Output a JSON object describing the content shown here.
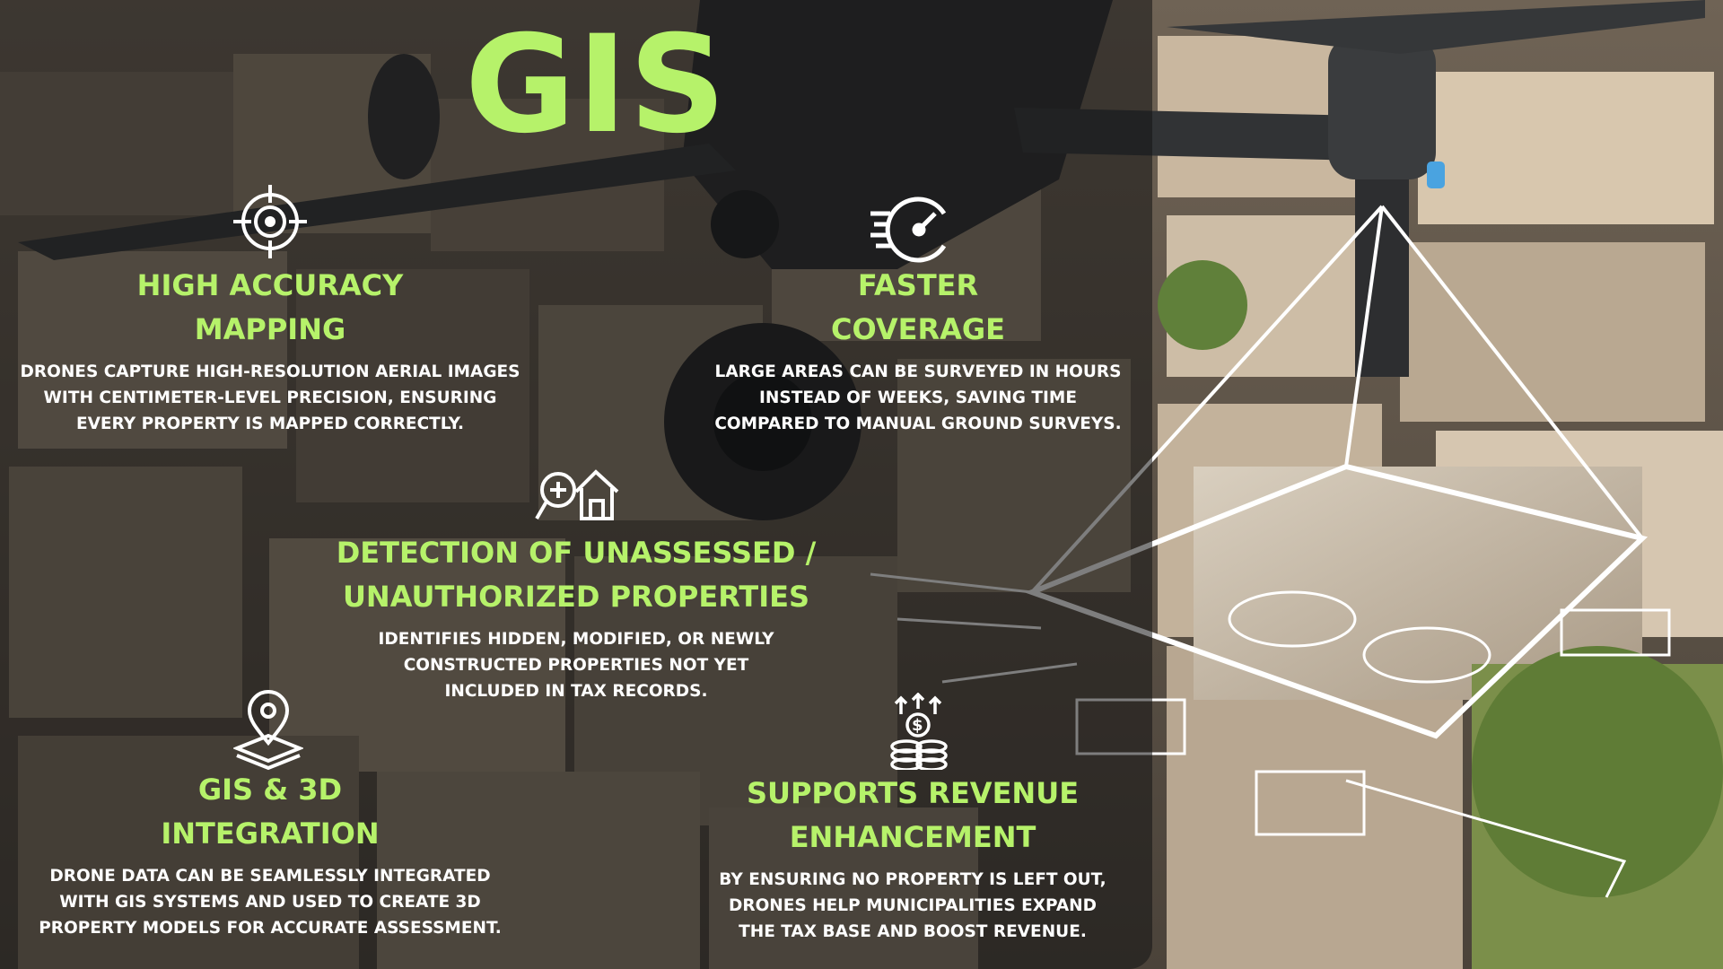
{
  "title": "GIS",
  "colors": {
    "accent": "#b6f26a",
    "text": "#ffffff",
    "overlay": "rgba(20,20,20,0.55)"
  },
  "features": [
    {
      "id": "high-accuracy",
      "icon": "target-crosshair-icon",
      "heading_line1": "HIGH ACCURACY",
      "heading_line2": "MAPPING",
      "body_line1": "DRONES CAPTURE HIGH-RESOLUTION AERIAL IMAGES",
      "body_line2": "WITH CENTIMETER-LEVEL PRECISION, ENSURING",
      "body_line3": "EVERY PROPERTY IS MAPPED CORRECTLY."
    },
    {
      "id": "faster-coverage",
      "icon": "speedometer-icon",
      "heading_line1": "FASTER",
      "heading_line2": "COVERAGE",
      "body_line1": "LARGE AREAS CAN BE SURVEYED IN HOURS",
      "body_line2": "INSTEAD OF WEEKS, SAVING TIME",
      "body_line3": "COMPARED TO MANUAL GROUND SURVEYS."
    },
    {
      "id": "detection",
      "icon": "search-house-icon",
      "heading_line1": "DETECTION OF UNASSESSED /",
      "heading_line2": "UNAUTHORIZED PROPERTIES",
      "body_line1": "IDENTIFIES HIDDEN, MODIFIED, OR NEWLY",
      "body_line2": "CONSTRUCTED PROPERTIES NOT YET",
      "body_line3": "INCLUDED IN TAX RECORDS."
    },
    {
      "id": "gis-3d",
      "icon": "map-pin-layers-icon",
      "heading_line1": "GIS & 3D",
      "heading_line2": "INTEGRATION",
      "body_line1": "DRONE DATA CAN BE SEAMLESSLY INTEGRATED",
      "body_line2": "WITH GIS SYSTEMS AND USED TO CREATE 3D",
      "body_line3": "PROPERTY MODELS FOR ACCURATE ASSESSMENT."
    },
    {
      "id": "revenue",
      "icon": "coins-growth-icon",
      "heading_line1": "SUPPORTS REVENUE",
      "heading_line2": "ENHANCEMENT",
      "body_line1": "BY ENSURING NO PROPERTY IS LEFT OUT,",
      "body_line2": "DRONES HELP MUNICIPALITIES EXPAND",
      "body_line3": "THE TAX BASE AND BOOST REVENUE."
    }
  ]
}
